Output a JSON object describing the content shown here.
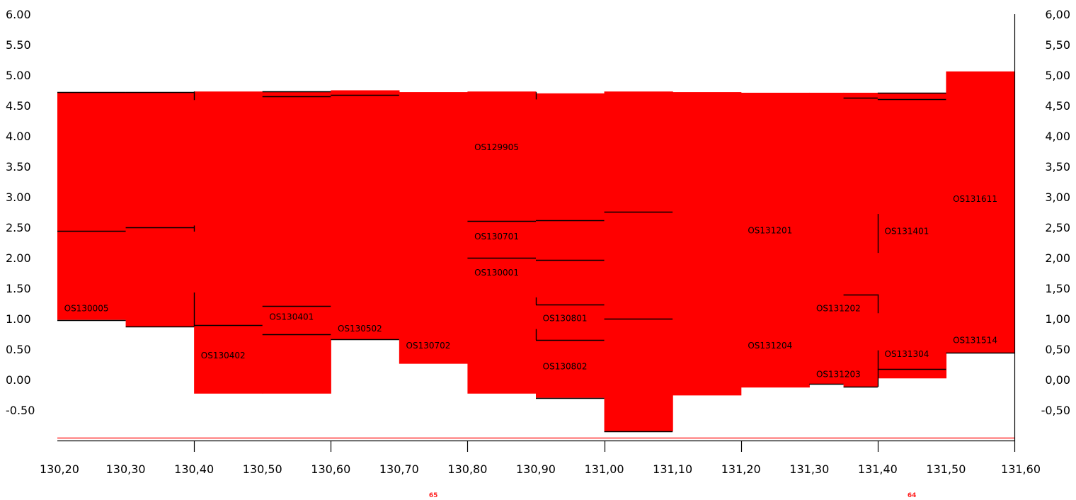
{
  "chart_data": {
    "type": "area",
    "title": "",
    "xlabel": "",
    "ylabel": "",
    "xlim": [
      130.2,
      131.6
    ],
    "ylim": [
      -1.0,
      6.0
    ],
    "fill_color": "#ff0000",
    "line_color": "#000000",
    "baseline_color": "#ff0000",
    "baseline_value": -0.95,
    "grid": false,
    "y_ticks_left": [
      "6.00",
      "5.50",
      "5.00",
      "4.50",
      "4.00",
      "3.50",
      "3.00",
      "2.50",
      "2.00",
      "1.50",
      "1.00",
      "0.50",
      "0.00",
      "-0.50"
    ],
    "y_ticks_right": [
      "6,00",
      "5,50",
      "5,00",
      "4,50",
      "4,00",
      "3,50",
      "3,00",
      "2,50",
      "2,00",
      "1,50",
      "1,00",
      "0,50",
      "0,00",
      "-0,50"
    ],
    "y_tick_values": [
      6.0,
      5.5,
      5.0,
      4.5,
      4.0,
      3.5,
      3.0,
      2.5,
      2.0,
      1.5,
      1.0,
      0.5,
      0.0,
      -0.5
    ],
    "x_ticks": [
      "130,20",
      "130,30",
      "130,40",
      "130,50",
      "130,60",
      "130,70",
      "130,80",
      "130,90",
      "131,00",
      "131,10",
      "131,20",
      "131,30",
      "131,40",
      "131,50",
      "131,60"
    ],
    "x_tick_values": [
      130.2,
      130.3,
      130.4,
      130.5,
      130.6,
      130.7,
      130.8,
      130.9,
      131.0,
      131.1,
      131.2,
      131.3,
      131.4,
      131.5,
      131.6
    ],
    "markers": [
      {
        "label": "65",
        "x": 130.75
      },
      {
        "label": "64",
        "x": 131.45
      }
    ],
    "segments": [
      {
        "x0": 130.2,
        "x1": 130.3,
        "top": 4.72,
        "bottom": 0.98
      },
      {
        "x0": 130.3,
        "x1": 130.4,
        "top": 4.72,
        "bottom": 0.87
      },
      {
        "x0": 130.4,
        "x1": 130.5,
        "top": 4.73,
        "bottom": -0.23
      },
      {
        "x0": 130.5,
        "x1": 130.6,
        "top": 4.73,
        "bottom": -0.23
      },
      {
        "x0": 130.6,
        "x1": 130.7,
        "top": 4.75,
        "bottom": 0.66
      },
      {
        "x0": 130.7,
        "x1": 130.8,
        "top": 4.72,
        "bottom": 0.26
      },
      {
        "x0": 130.8,
        "x1": 130.9,
        "top": 4.73,
        "bottom": -0.23
      },
      {
        "x0": 130.9,
        "x1": 131.0,
        "top": 4.7,
        "bottom": -0.3
      },
      {
        "x0": 131.0,
        "x1": 131.1,
        "top": 4.73,
        "bottom": -0.85
      },
      {
        "x0": 131.1,
        "x1": 131.2,
        "top": 4.72,
        "bottom": -0.26
      },
      {
        "x0": 131.2,
        "x1": 131.3,
        "top": 4.71,
        "bottom": -0.13
      },
      {
        "x0": 131.3,
        "x1": 131.35,
        "top": 4.71,
        "bottom": -0.07
      },
      {
        "x0": 131.35,
        "x1": 131.4,
        "top": 4.71,
        "bottom": -0.12
      },
      {
        "x0": 131.4,
        "x1": 131.5,
        "top": 4.71,
        "bottom": 0.02
      },
      {
        "x0": 131.5,
        "x1": 131.6,
        "top": 5.06,
        "bottom": 0.44
      }
    ],
    "layer_lines": [
      {
        "x0": 130.2,
        "x1": 130.3,
        "y": 4.72
      },
      {
        "x0": 130.2,
        "x1": 130.3,
        "y": 2.44
      },
      {
        "x0": 130.2,
        "x1": 130.3,
        "y": 0.98
      },
      {
        "x0": 130.3,
        "x1": 130.4,
        "y": 4.72
      },
      {
        "x0": 130.3,
        "x1": 130.4,
        "y": 2.5
      },
      {
        "x0": 130.3,
        "x1": 130.4,
        "y": 0.87
      },
      {
        "x0": 130.4,
        "x1": 130.5,
        "y": 0.89
      },
      {
        "x0": 130.5,
        "x1": 130.6,
        "y": 4.73
      },
      {
        "x0": 130.5,
        "x1": 130.6,
        "y": 4.65
      },
      {
        "x0": 130.5,
        "x1": 130.6,
        "y": 1.21
      },
      {
        "x0": 130.5,
        "x1": 130.6,
        "y": 0.75
      },
      {
        "x0": 130.6,
        "x1": 130.7,
        "y": 4.67
      },
      {
        "x0": 130.6,
        "x1": 130.7,
        "y": 0.66
      },
      {
        "x0": 130.8,
        "x1": 130.9,
        "y": 2.6
      },
      {
        "x0": 130.8,
        "x1": 130.9,
        "y": 2.0
      },
      {
        "x0": 130.9,
        "x1": 131.0,
        "y": 2.62
      },
      {
        "x0": 130.9,
        "x1": 131.0,
        "y": 1.97
      },
      {
        "x0": 130.9,
        "x1": 131.0,
        "y": 1.23
      },
      {
        "x0": 130.9,
        "x1": 131.0,
        "y": 0.65
      },
      {
        "x0": 130.9,
        "x1": 131.0,
        "y": -0.3
      },
      {
        "x0": 131.0,
        "x1": 131.1,
        "y": 2.76
      },
      {
        "x0": 131.0,
        "x1": 131.1,
        "y": 1.0
      },
      {
        "x0": 131.0,
        "x1": 131.1,
        "y": -0.85
      },
      {
        "x0": 131.3,
        "x1": 131.35,
        "y": -0.07
      },
      {
        "x0": 131.35,
        "x1": 131.4,
        "y": 4.63
      },
      {
        "x0": 131.35,
        "x1": 131.4,
        "y": 1.4
      },
      {
        "x0": 131.35,
        "x1": 131.4,
        "y": -0.12
      },
      {
        "x0": 131.4,
        "x1": 131.5,
        "y": 4.71
      },
      {
        "x0": 131.4,
        "x1": 131.5,
        "y": 4.61
      },
      {
        "x0": 131.4,
        "x1": 131.5,
        "y": 0.17
      },
      {
        "x0": 131.5,
        "x1": 131.6,
        "y": 0.44
      }
    ],
    "vertical_marks": [
      {
        "x": 130.4,
        "y0": 4.59,
        "y1": 4.73
      },
      {
        "x": 130.4,
        "y0": 2.43,
        "y1": 2.53
      },
      {
        "x": 130.4,
        "y0": 0.87,
        "y1": 1.43
      },
      {
        "x": 130.9,
        "y0": 4.6,
        "y1": 4.72
      },
      {
        "x": 130.9,
        "y0": 1.23,
        "y1": 1.35
      },
      {
        "x": 130.9,
        "y0": 0.65,
        "y1": 0.83
      },
      {
        "x": 131.4,
        "y0": 2.08,
        "y1": 2.72
      },
      {
        "x": 131.4,
        "y0": 1.09,
        "y1": 1.4
      },
      {
        "x": 131.4,
        "y0": -0.12,
        "y1": 0.48
      }
    ],
    "borehole_labels": [
      {
        "text": "OS130005",
        "x": 130.21,
        "y": 1.12
      },
      {
        "text": "OS130402",
        "x": 130.41,
        "y": 0.35
      },
      {
        "text": "OS130401",
        "x": 130.51,
        "y": 0.98
      },
      {
        "text": "OS130502",
        "x": 130.61,
        "y": 0.79
      },
      {
        "text": "OS130702",
        "x": 130.71,
        "y": 0.51
      },
      {
        "text": "OS129905",
        "x": 130.81,
        "y": 3.77
      },
      {
        "text": "OS130701",
        "x": 130.81,
        "y": 2.3
      },
      {
        "text": "OS130001",
        "x": 130.81,
        "y": 1.71
      },
      {
        "text": "OS130801",
        "x": 130.91,
        "y": 0.96
      },
      {
        "text": "OS130802",
        "x": 130.91,
        "y": 0.17
      },
      {
        "text": "OS131201",
        "x": 131.21,
        "y": 2.4
      },
      {
        "text": "OS131204",
        "x": 131.21,
        "y": 0.51
      },
      {
        "text": "OS131202",
        "x": 131.31,
        "y": 1.12
      },
      {
        "text": "OS131203",
        "x": 131.31,
        "y": 0.04
      },
      {
        "text": "OS131401",
        "x": 131.41,
        "y": 2.39
      },
      {
        "text": "OS131304",
        "x": 131.41,
        "y": 0.37
      },
      {
        "text": "OS131611",
        "x": 131.51,
        "y": 2.92
      },
      {
        "text": "OS131514",
        "x": 131.51,
        "y": 0.6
      }
    ]
  }
}
